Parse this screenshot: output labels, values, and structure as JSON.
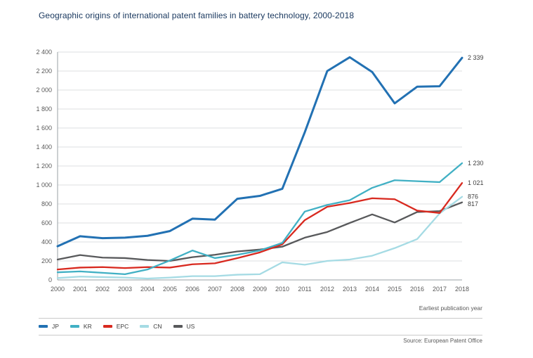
{
  "source": "Source: European Patent Office",
  "chart_data": {
    "type": "line",
    "title": "Geographic origins of international patent families in battery technology, 2000-2018",
    "xlabel": "Earliest publication year",
    "x": [
      2000,
      2001,
      2002,
      2003,
      2004,
      2005,
      2006,
      2007,
      2008,
      2009,
      2010,
      2011,
      2012,
      2013,
      2014,
      2015,
      2016,
      2017,
      2018
    ],
    "ylim": [
      0,
      2400
    ],
    "ytick_step": 200,
    "grid": true,
    "legend_position": "bottom-left",
    "title_color": "#17365d",
    "series": [
      {
        "name": "JP",
        "color": "#2271b3",
        "end_label": "2 339",
        "values": [
          355,
          460,
          440,
          445,
          465,
          515,
          645,
          635,
          855,
          885,
          960,
          1555,
          2200,
          2345,
          2190,
          1860,
          2035,
          2040,
          2339
        ]
      },
      {
        "name": "KR",
        "color": "#41b0c4",
        "end_label": "1 230",
        "values": [
          80,
          90,
          75,
          60,
          110,
          205,
          310,
          230,
          265,
          310,
          390,
          720,
          790,
          840,
          970,
          1050,
          1040,
          1030,
          1230
        ]
      },
      {
        "name": "EPC",
        "color": "#d8291f",
        "end_label": "1 021",
        "values": [
          110,
          130,
          135,
          125,
          135,
          130,
          165,
          175,
          230,
          290,
          375,
          630,
          770,
          810,
          860,
          850,
          730,
          705,
          1021
        ]
      },
      {
        "name": "CN",
        "color": "#a5dbe4",
        "end_label": "876",
        "values": [
          20,
          35,
          30,
          25,
          15,
          25,
          40,
          40,
          55,
          60,
          185,
          160,
          200,
          215,
          255,
          335,
          430,
          700,
          876
        ]
      },
      {
        "name": "US",
        "color": "#58595b",
        "end_label": "817",
        "values": [
          215,
          262,
          235,
          230,
          210,
          200,
          240,
          265,
          300,
          320,
          350,
          445,
          505,
          600,
          690,
          605,
          715,
          725,
          817
        ]
      }
    ]
  }
}
